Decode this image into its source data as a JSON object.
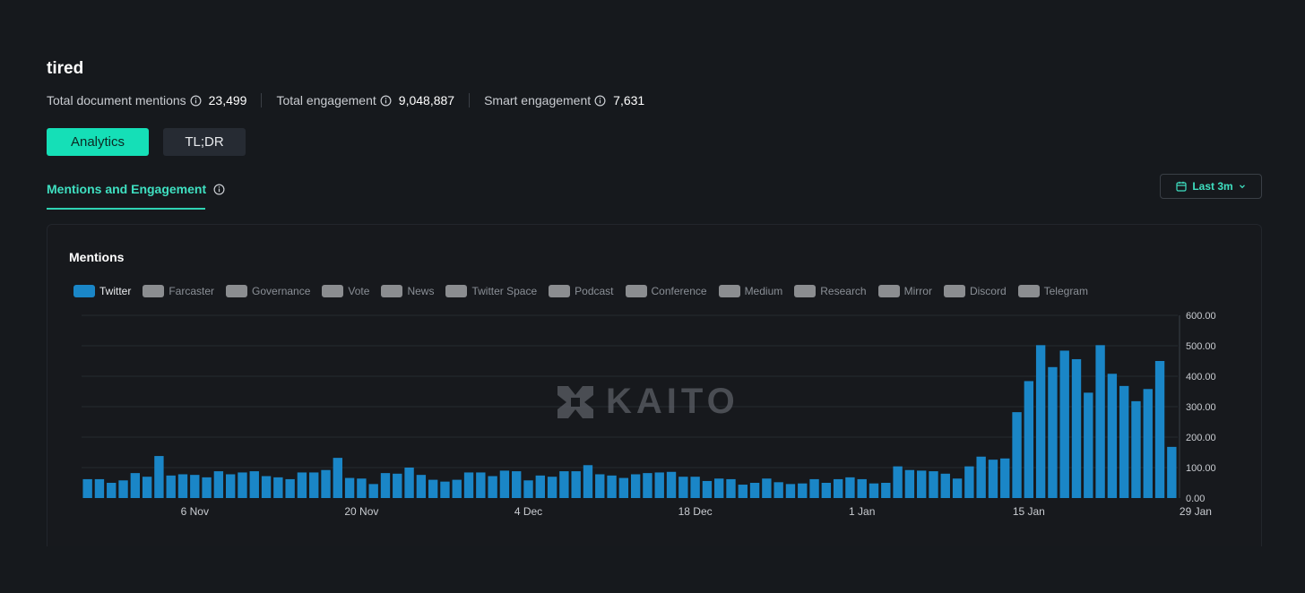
{
  "header": {
    "title": "tired",
    "stats": [
      {
        "label": "Total document mentions",
        "value": "23,499"
      },
      {
        "label": "Total engagement",
        "value": "9,048,887"
      },
      {
        "label": "Smart engagement",
        "value": "7,631"
      }
    ]
  },
  "tabs": {
    "analytics": "Analytics",
    "tldr": "TL;DR"
  },
  "section": {
    "title": "Mentions and Engagement"
  },
  "range": {
    "label": "Last 3m"
  },
  "card": {
    "title": "Mentions"
  },
  "watermark": "KAITO",
  "legend": [
    {
      "label": "Twitter",
      "active": true
    },
    {
      "label": "Farcaster",
      "active": false
    },
    {
      "label": "Governance",
      "active": false
    },
    {
      "label": "Vote",
      "active": false
    },
    {
      "label": "News",
      "active": false
    },
    {
      "label": "Twitter Space",
      "active": false
    },
    {
      "label": "Podcast",
      "active": false
    },
    {
      "label": "Conference",
      "active": false
    },
    {
      "label": "Medium",
      "active": false
    },
    {
      "label": "Research",
      "active": false
    },
    {
      "label": "Mirror",
      "active": false
    },
    {
      "label": "Discord",
      "active": false
    },
    {
      "label": "Telegram",
      "active": false
    }
  ],
  "colors": {
    "accent": "#15dfb7",
    "twitter": "#1a86c7",
    "inactive_legend": "#8b8d90",
    "background": "#16191d"
  },
  "chart_data": {
    "type": "bar",
    "ylim": [
      0,
      600
    ],
    "yticks": [
      "0.00",
      "100.00",
      "200.00",
      "300.00",
      "400.00",
      "500.00",
      "600.00"
    ],
    "y_axis_position": "right",
    "grid": true,
    "xtick_labels": [
      {
        "label": "6 Nov",
        "index": 9
      },
      {
        "label": "20 Nov",
        "index": 23
      },
      {
        "label": "4 Dec",
        "index": 37
      },
      {
        "label": "18 Dec",
        "index": 51
      },
      {
        "label": "1 Jan",
        "index": 65
      },
      {
        "label": "15 Jan",
        "index": 79
      },
      {
        "label": "29 Jan",
        "index": 93
      }
    ],
    "series": [
      {
        "name": "Twitter",
        "values": [
          62,
          62,
          50,
          58,
          82,
          70,
          138,
          74,
          78,
          76,
          68,
          88,
          78,
          84,
          88,
          72,
          68,
          62,
          84,
          84,
          92,
          132,
          66,
          64,
          46,
          82,
          80,
          100,
          76,
          60,
          54,
          60,
          84,
          84,
          72,
          90,
          88,
          58,
          74,
          70,
          88,
          88,
          108,
          78,
          74,
          66,
          78,
          82,
          84,
          86,
          70,
          70,
          56,
          64,
          62,
          44,
          50,
          64,
          52,
          46,
          48,
          62,
          50,
          62,
          68,
          62,
          48,
          50,
          104,
          92,
          90,
          88,
          80,
          64,
          104,
          136,
          126,
          130,
          282,
          384,
          502,
          430,
          484,
          456,
          346,
          502,
          408,
          368,
          318,
          358,
          450,
          168
        ]
      }
    ]
  }
}
